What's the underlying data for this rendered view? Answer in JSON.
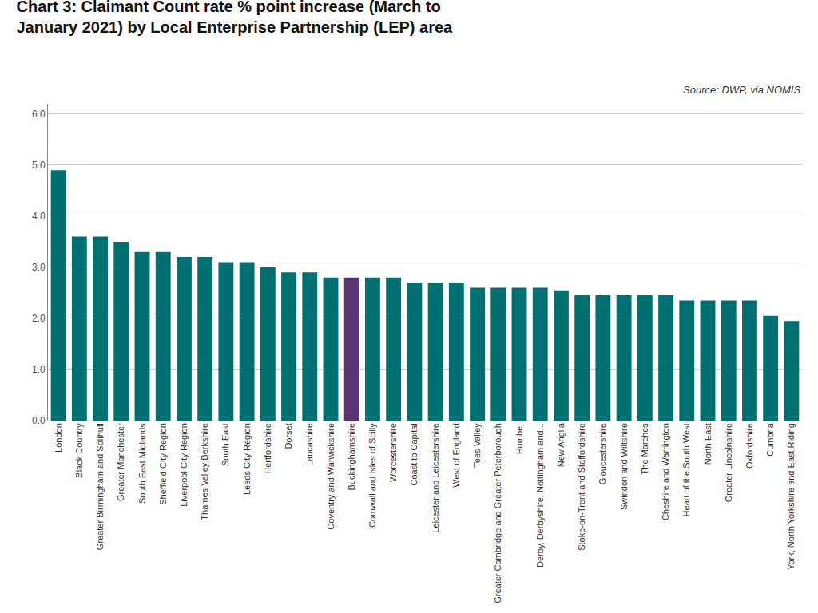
{
  "chart_data": {
    "type": "bar",
    "title": "Chart 3: Claimant Count rate % point increase (March to\nJanuary 2021) by Local Enterprise Partnership (LEP) area",
    "categories": [
      "London",
      "Black Country",
      "Greater Birmingham and Solihull",
      "Greater Manchester",
      "South East Midlands",
      "Sheffield City Region",
      "Liverpool City Region",
      "Thames Valley Berkshire",
      "South East",
      "Leeds City Region",
      "Hertfordshire",
      "Dorset",
      "Lancashire",
      "Coventry and Warwickshire",
      "Buckinghamshire",
      "Cornwall and Isles of Scilly",
      "Worcestershire",
      "Coast to Capital",
      "Leicester and Leicestershire",
      "West of England",
      "Tees Valley",
      "Greater Cambridge and Greater Peterborough",
      "Humber",
      "Derby, Derbyshire, Nottingham and...",
      "New Anglia",
      "Stoke-on-Trent and Staffordshire",
      "Gloucestershire",
      "Swindon and Wiltshire",
      "The Marches",
      "Cheshire and Warrington",
      "Heart of the South West",
      "North East",
      "Greater Lincolnshire",
      "Oxfordshire",
      "Cumbria",
      "York, North Yorkshire and East Riding"
    ],
    "values": [
      4.9,
      3.6,
      3.6,
      3.5,
      3.3,
      3.3,
      3.2,
      3.2,
      3.1,
      3.1,
      3.0,
      2.9,
      2.9,
      2.8,
      2.8,
      2.8,
      2.8,
      2.7,
      2.7,
      2.7,
      2.6,
      2.6,
      2.6,
      2.6,
      2.55,
      2.45,
      2.45,
      2.45,
      2.45,
      2.45,
      2.35,
      2.35,
      2.35,
      2.35,
      2.05,
      1.95
    ],
    "colors": [
      "#007070",
      "#007070",
      "#007070",
      "#007070",
      "#007070",
      "#007070",
      "#007070",
      "#007070",
      "#007070",
      "#007070",
      "#007070",
      "#007070",
      "#007070",
      "#007070",
      "#5b3275",
      "#007070",
      "#007070",
      "#007070",
      "#007070",
      "#007070",
      "#007070",
      "#007070",
      "#007070",
      "#007070",
      "#007070",
      "#007070",
      "#007070",
      "#007070",
      "#007070",
      "#007070",
      "#007070",
      "#007070",
      "#007070",
      "#007070",
      "#007070",
      "#007070"
    ],
    "ylim": [
      0,
      6.2
    ],
    "yticks": [
      {
        "value": 0,
        "label": "0.0"
      },
      {
        "value": 1,
        "label": "1.0"
      },
      {
        "value": 2,
        "label": "2.0"
      },
      {
        "value": 3,
        "label": "3.0"
      },
      {
        "value": 4,
        "label": "4.0"
      },
      {
        "value": 5,
        "label": "5.0"
      },
      {
        "value": 6,
        "label": "6.0"
      }
    ],
    "grid": true,
    "annotations": [
      "Source: DWP, via NOMIS"
    ]
  }
}
